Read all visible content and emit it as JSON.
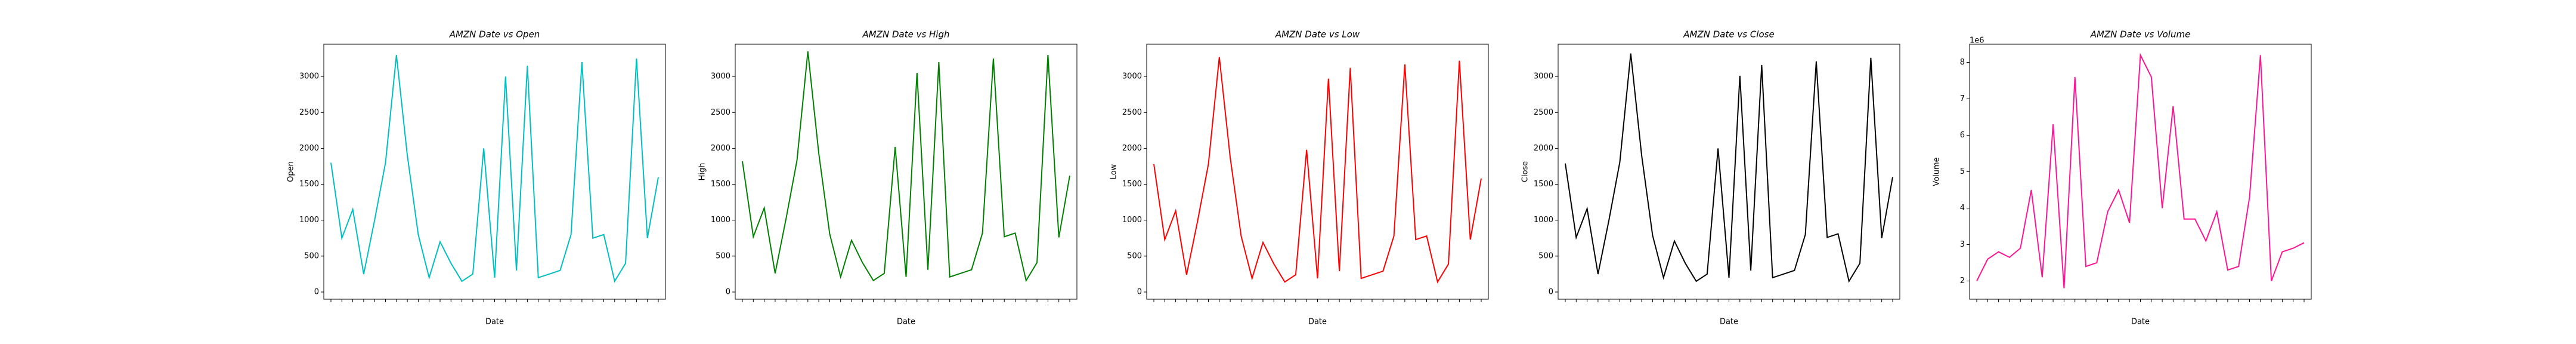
{
  "chart_data": [
    {
      "type": "line",
      "title": "AMZN Date vs Open",
      "xlabel": "Date",
      "ylabel": "Open",
      "color": "#00bfbf",
      "categories": [
        null,
        null,
        null,
        null,
        null,
        null,
        null,
        null,
        null,
        null,
        null,
        null,
        null,
        null,
        null,
        null,
        null,
        null,
        null,
        null,
        null,
        null,
        null,
        null,
        null,
        null,
        null,
        null,
        null,
        null,
        null
      ],
      "values": [
        1800,
        750,
        1150,
        250,
        1000,
        1800,
        3300,
        1900,
        800,
        200,
        700,
        400,
        150,
        250,
        2000,
        200,
        3000,
        300,
        3150,
        200,
        250,
        300,
        800,
        3200,
        750,
        800,
        150,
        400,
        3250,
        750,
        1600
      ],
      "ylim": [
        -100,
        3450
      ],
      "yticks": [
        0,
        500,
        1000,
        1500,
        2000,
        2500,
        3000
      ]
    },
    {
      "type": "line",
      "title": "AMZN Date vs High",
      "xlabel": "Date",
      "ylabel": "High",
      "color": "#008000",
      "categories": [
        null,
        null,
        null,
        null,
        null,
        null,
        null,
        null,
        null,
        null,
        null,
        null,
        null,
        null,
        null,
        null,
        null,
        null,
        null,
        null,
        null,
        null,
        null,
        null,
        null,
        null,
        null,
        null,
        null,
        null,
        null
      ],
      "values": [
        1820,
        770,
        1170,
        260,
        1020,
        1830,
        3350,
        1930,
        810,
        210,
        720,
        410,
        160,
        260,
        2020,
        210,
        3050,
        310,
        3200,
        210,
        260,
        310,
        820,
        3250,
        770,
        820,
        160,
        410,
        3300,
        760,
        1620
      ],
      "ylim": [
        -100,
        3450
      ],
      "yticks": [
        0,
        500,
        1000,
        1500,
        2000,
        2500,
        3000
      ]
    },
    {
      "type": "line",
      "title": "AMZN Date vs Low",
      "xlabel": "Date",
      "ylabel": "Low",
      "color": "#ff0000",
      "categories": [
        null,
        null,
        null,
        null,
        null,
        null,
        null,
        null,
        null,
        null,
        null,
        null,
        null,
        null,
        null,
        null,
        null,
        null,
        null,
        null,
        null,
        null,
        null,
        null,
        null,
        null,
        null,
        null,
        null,
        null,
        null
      ],
      "values": [
        1780,
        730,
        1130,
        240,
        980,
        1780,
        3270,
        1870,
        780,
        190,
        690,
        390,
        140,
        240,
        1980,
        190,
        2970,
        290,
        3120,
        190,
        240,
        290,
        780,
        3170,
        730,
        780,
        140,
        390,
        3220,
        730,
        1580
      ],
      "ylim": [
        -100,
        3450
      ],
      "yticks": [
        0,
        500,
        1000,
        1500,
        2000,
        2500,
        3000
      ]
    },
    {
      "type": "line",
      "title": "AMZN Date vs Close",
      "xlabel": "Date",
      "ylabel": "Close",
      "color": "#000000",
      "categories": [
        null,
        null,
        null,
        null,
        null,
        null,
        null,
        null,
        null,
        null,
        null,
        null,
        null,
        null,
        null,
        null,
        null,
        null,
        null,
        null,
        null,
        null,
        null,
        null,
        null,
        null,
        null,
        null,
        null,
        null,
        null
      ],
      "values": [
        1790,
        760,
        1160,
        250,
        1000,
        1810,
        3320,
        1900,
        790,
        200,
        710,
        400,
        150,
        250,
        2000,
        200,
        3010,
        300,
        3160,
        200,
        250,
        300,
        800,
        3210,
        760,
        810,
        150,
        400,
        3260,
        750,
        1600
      ],
      "ylim": [
        -100,
        3450
      ],
      "yticks": [
        0,
        500,
        1000,
        1500,
        2000,
        2500,
        3000
      ]
    },
    {
      "type": "line",
      "title": "AMZN Date vs Volume",
      "xlabel": "Date",
      "ylabel": "Volume",
      "color": "#ff1493",
      "offset_label": "1e6",
      "categories": [
        null,
        null,
        null,
        null,
        null,
        null,
        null,
        null,
        null,
        null,
        null,
        null,
        null,
        null,
        null,
        null,
        null,
        null,
        null,
        null,
        null,
        null,
        null,
        null,
        null,
        null,
        null,
        null,
        null,
        null,
        null
      ],
      "values": [
        2.0,
        2.6,
        2.8,
        2.65,
        2.9,
        4.5,
        2.1,
        6.3,
        1.8,
        7.6,
        2.4,
        2.5,
        3.9,
        4.5,
        3.6,
        8.2,
        7.6,
        4.0,
        6.8,
        3.7,
        3.7,
        3.1,
        3.9,
        2.3,
        2.4,
        4.3,
        8.2,
        2.0,
        2.8,
        2.9,
        3.05
      ],
      "ylim": [
        1.5,
        8.5
      ],
      "yticks": [
        2,
        3,
        4,
        5,
        6,
        7,
        8
      ]
    }
  ]
}
